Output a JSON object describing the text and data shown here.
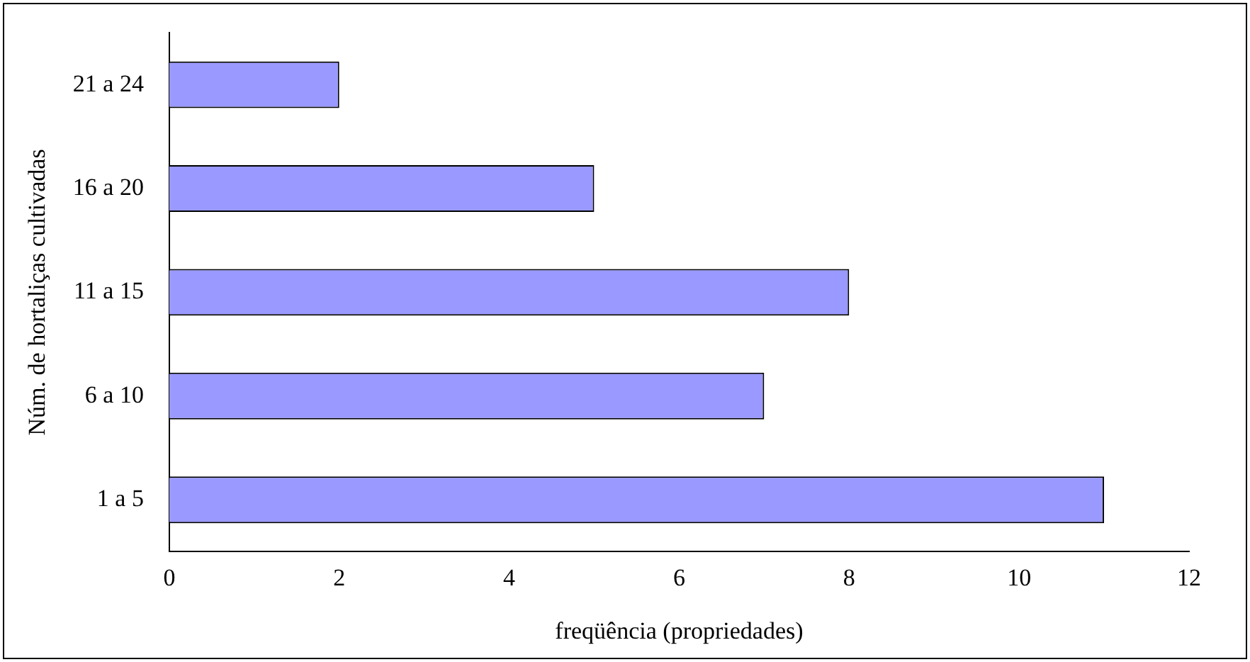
{
  "chart_data": {
    "type": "bar",
    "orientation": "horizontal",
    "xlabel": "freqüência (propriedades)",
    "ylabel": "Núm. de hortaliças cultivadas",
    "categories": [
      "21 a 24",
      "16 a 20",
      "11 a 15",
      "6 a 10",
      "1 a 5"
    ],
    "values": [
      2,
      5,
      8,
      7,
      11
    ],
    "color": "#9999ff",
    "xlim": [
      0,
      12
    ],
    "xticks": [
      0,
      2,
      4,
      6,
      8,
      10,
      12
    ],
    "grid": false,
    "legend": false
  }
}
